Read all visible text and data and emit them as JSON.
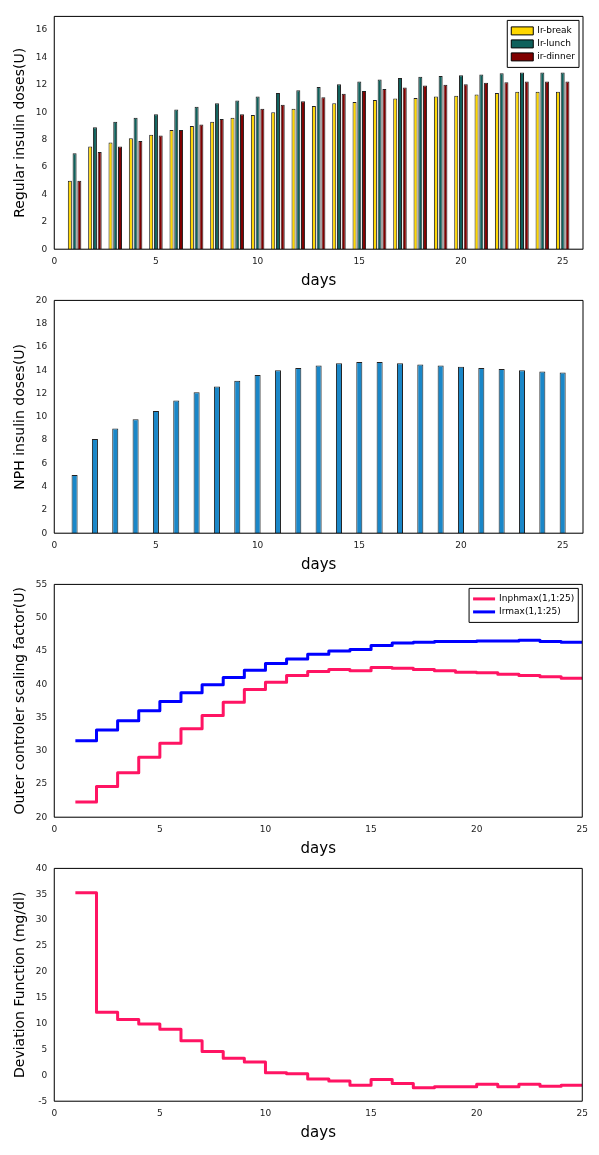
{
  "chart_data": [
    {
      "type": "bar",
      "xlabel": "days",
      "ylabel": "Regular insulin doses(U)",
      "x": [
        1,
        2,
        3,
        4,
        5,
        6,
        7,
        8,
        9,
        10,
        11,
        12,
        13,
        14,
        15,
        16,
        17,
        18,
        19,
        20,
        21,
        22,
        23,
        24,
        25
      ],
      "xlim": [
        0,
        26
      ],
      "xticks": [
        0,
        5,
        10,
        15,
        20,
        25
      ],
      "ylim": [
        0,
        17
      ],
      "yticks": [
        0,
        2,
        4,
        6,
        8,
        10,
        12,
        14,
        16
      ],
      "grid": false,
      "legend": "top right",
      "series": [
        {
          "name": "Ir-break",
          "color": "#ffd700",
          "values": [
            5.0,
            7.5,
            7.8,
            8.1,
            8.35,
            8.7,
            9.0,
            9.3,
            9.6,
            9.8,
            10.0,
            10.25,
            10.45,
            10.65,
            10.75,
            10.9,
            11.0,
            11.05,
            11.15,
            11.2,
            11.3,
            11.4,
            11.5,
            11.5,
            11.5
          ]
        },
        {
          "name": "Ir-lunch",
          "color": "#0f615c",
          "values": [
            7.0,
            8.9,
            9.3,
            9.6,
            9.85,
            10.2,
            10.4,
            10.65,
            10.85,
            11.15,
            11.4,
            11.6,
            11.85,
            12.05,
            12.25,
            12.4,
            12.5,
            12.6,
            12.65,
            12.7,
            12.75,
            12.85,
            12.9,
            12.9,
            12.9
          ]
        },
        {
          "name": "ir-dinner",
          "color": "#800000",
          "values": [
            5.0,
            7.1,
            7.5,
            7.9,
            8.3,
            8.7,
            9.1,
            9.5,
            9.85,
            10.25,
            10.55,
            10.8,
            11.1,
            11.35,
            11.55,
            11.7,
            11.8,
            11.95,
            12.0,
            12.05,
            12.15,
            12.2,
            12.25,
            12.25,
            12.25
          ]
        }
      ]
    },
    {
      "type": "bar",
      "xlabel": "days",
      "ylabel": "NPH insulin doses(U)",
      "x": [
        1,
        2,
        3,
        4,
        5,
        6,
        7,
        8,
        9,
        10,
        11,
        12,
        13,
        14,
        15,
        16,
        17,
        18,
        19,
        20,
        21,
        22,
        23,
        24,
        25
      ],
      "xlim": [
        0,
        26
      ],
      "xticks": [
        0,
        5,
        10,
        15,
        20,
        25
      ],
      "ylim": [
        0,
        20
      ],
      "yticks": [
        0,
        2,
        4,
        6,
        8,
        10,
        12,
        14,
        16,
        18,
        20
      ],
      "grid": false,
      "color": "#1a87c8",
      "values": [
        5.0,
        8.1,
        9.0,
        9.8,
        10.5,
        11.4,
        12.1,
        12.6,
        13.1,
        13.6,
        14.0,
        14.2,
        14.4,
        14.6,
        14.7,
        14.7,
        14.6,
        14.5,
        14.4,
        14.3,
        14.2,
        14.1,
        14.0,
        13.9,
        13.8
      ]
    },
    {
      "type": "step",
      "xlabel": "days",
      "ylabel": "Outer controler scaling factor(U)",
      "x": [
        1,
        2,
        3,
        4,
        5,
        6,
        7,
        8,
        9,
        10,
        11,
        12,
        13,
        14,
        15,
        16,
        17,
        18,
        19,
        20,
        21,
        22,
        23,
        24,
        25
      ],
      "xlim": [
        0,
        25
      ],
      "xticks": [
        0,
        5,
        10,
        15,
        20,
        25
      ],
      "ylim": [
        20,
        55
      ],
      "yticks": [
        20,
        25,
        30,
        35,
        40,
        45,
        50,
        55
      ],
      "grid": false,
      "legend": "top right",
      "marker": "none",
      "series": [
        {
          "name": "Inphmax(1,1:25)",
          "color": "#ff1463",
          "values": [
            22.3,
            24.6,
            26.7,
            29.0,
            31.1,
            33.3,
            35.3,
            37.3,
            39.2,
            40.3,
            41.3,
            41.9,
            42.2,
            42.0,
            42.5,
            42.4,
            42.2,
            42.0,
            41.8,
            41.7,
            41.5,
            41.3,
            41.1,
            40.9,
            40.9
          ]
        },
        {
          "name": "Irmax(1,1:25)",
          "color": "#0000ff",
          "values": [
            31.5,
            33.1,
            34.5,
            36.0,
            37.4,
            38.7,
            39.9,
            41.0,
            42.1,
            43.1,
            43.8,
            44.5,
            45.0,
            45.2,
            45.8,
            46.2,
            46.3,
            46.4,
            46.4,
            46.5,
            46.5,
            46.6,
            46.4,
            46.3,
            46.3
          ]
        }
      ]
    },
    {
      "type": "step",
      "xlabel": "days",
      "ylabel": "Deviation Function (mg/dl)",
      "x": [
        1,
        2,
        3,
        4,
        5,
        6,
        7,
        8,
        9,
        10,
        11,
        12,
        13,
        14,
        15,
        16,
        17,
        18,
        19,
        20,
        21,
        22,
        23,
        24,
        25
      ],
      "xlim": [
        0,
        25
      ],
      "xticks": [
        0,
        5,
        10,
        15,
        20,
        25
      ],
      "ylim": [
        -5,
        40
      ],
      "yticks": [
        -5,
        0,
        5,
        10,
        15,
        20,
        25,
        30,
        35,
        40
      ],
      "grid": false,
      "marker": "none",
      "color": "#ff1463",
      "values": [
        35.3,
        12.2,
        10.8,
        9.9,
        8.9,
        6.7,
        4.6,
        3.3,
        2.6,
        0.5,
        0.3,
        -0.7,
        -1.1,
        -1.9,
        -0.8,
        -1.6,
        -2.4,
        -2.2,
        -2.2,
        -1.7,
        -2.2,
        -1.7,
        -2.1,
        -1.9,
        -1.9
      ]
    }
  ]
}
